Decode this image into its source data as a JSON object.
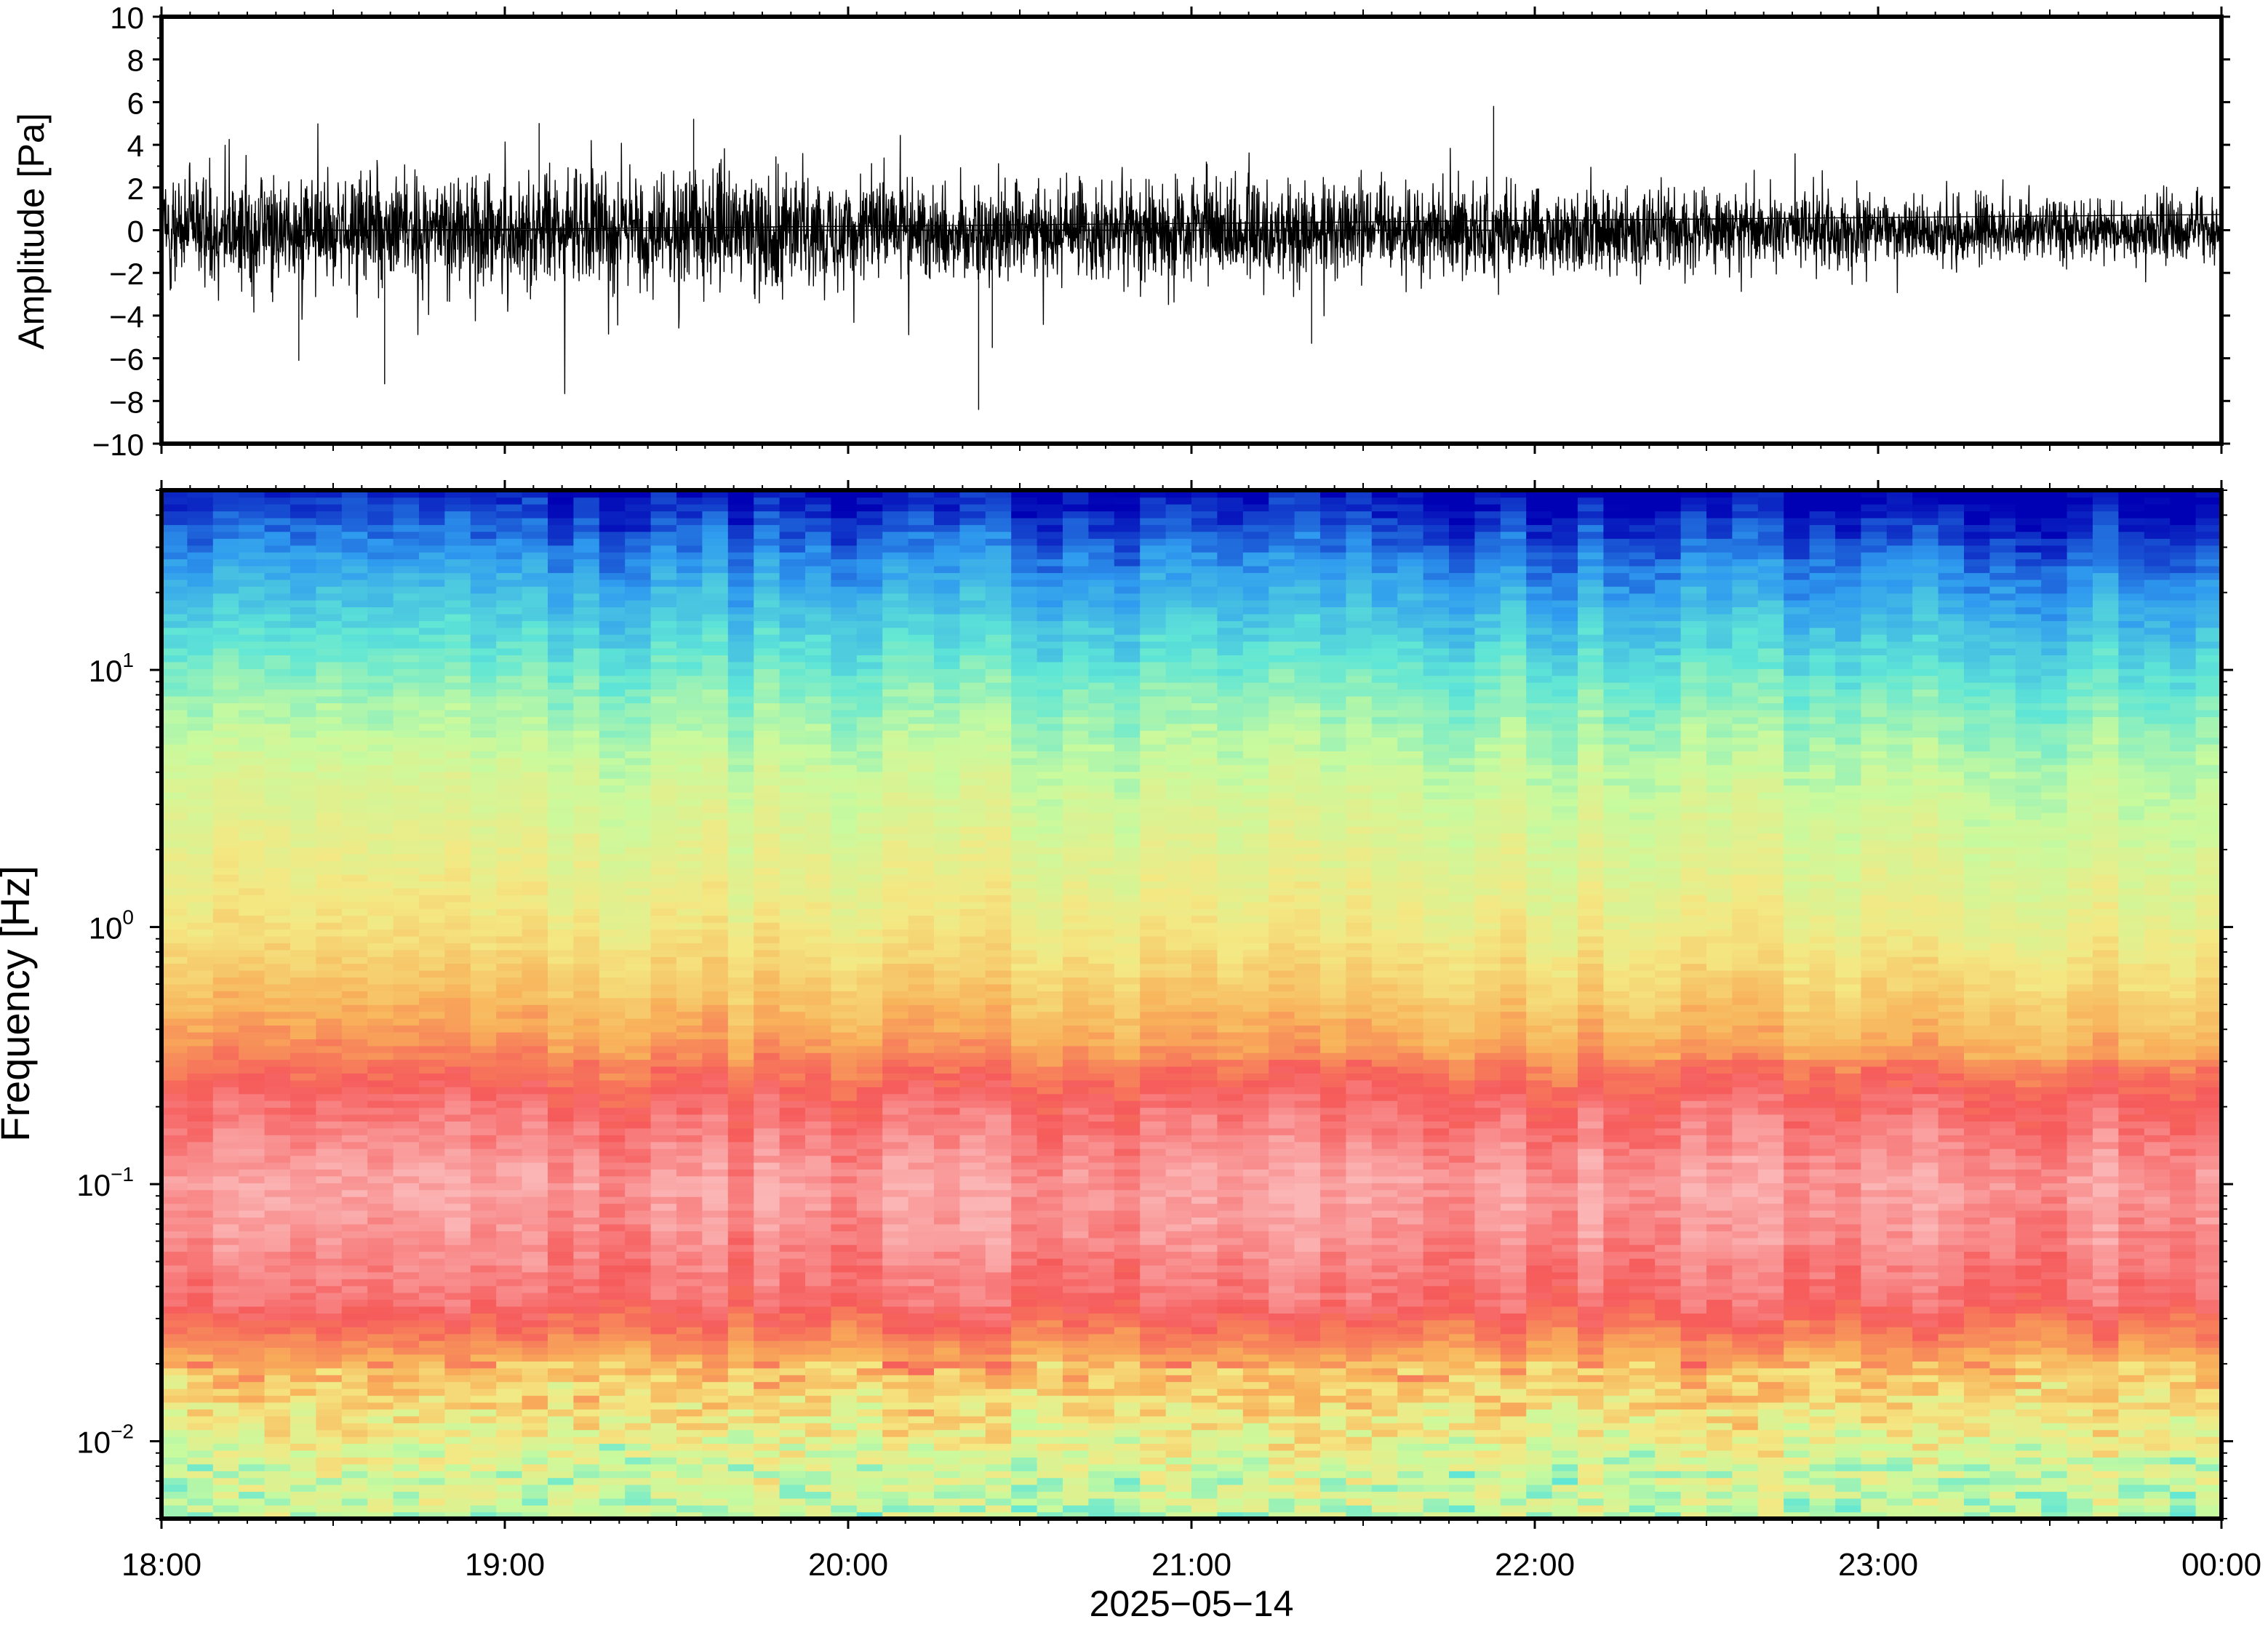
{
  "chart_data": [
    {
      "type": "line",
      "panel": "waveform",
      "ylabel": "Amplitude [Pa]",
      "ylim": [
        -10,
        10
      ],
      "yticks": [
        -10,
        -8,
        -6,
        -4,
        -2,
        0,
        2,
        4,
        6,
        8,
        10
      ],
      "ytick_labels": [
        "−10",
        "−8",
        "−6",
        "−4",
        "−2",
        "0",
        "2",
        "4",
        "6",
        "8",
        "10"
      ],
      "xlim_hours": [
        18,
        24
      ],
      "envelope_hours": [
        18.0,
        18.5,
        19.0,
        19.5,
        20.0,
        20.5,
        21.0,
        21.5,
        22.0,
        22.5,
        23.0,
        23.5,
        24.0
      ],
      "envelope_amplitude": [
        2.2,
        2.4,
        2.3,
        2.4,
        2.1,
        2.0,
        2.0,
        1.9,
        1.8,
        1.6,
        1.4,
        1.3,
        1.2
      ],
      "peaks": [
        {
          "hour": 18.65,
          "value": -7.2
        },
        {
          "hour": 19.55,
          "value": 5.2
        },
        {
          "hour": 20.38,
          "value": -8.4
        },
        {
          "hour": 20.42,
          "value": -5.5
        },
        {
          "hour": 21.88,
          "value": 5.8
        },
        {
          "hour": 21.35,
          "value": -5.3
        },
        {
          "hour": 18.4,
          "value": -6.1
        },
        {
          "hour": 19.1,
          "value": 5.0
        }
      ],
      "grid": false
    },
    {
      "type": "heatmap",
      "panel": "spectrogram",
      "ylabel": "Frequency [Hz]",
      "yscale": "log",
      "ylim": [
        0.005,
        50
      ],
      "yticks": [
        0.01,
        0.1,
        1,
        10
      ],
      "ytick_labels": [
        {
          "base": "10",
          "exp": "−2"
        },
        {
          "base": "10",
          "exp": "−1"
        },
        {
          "base": "10",
          "exp": "0"
        },
        {
          "base": "10",
          "exp": "1"
        }
      ],
      "colormap": [
        "#0000b4",
        "#2f9bef",
        "#5fe6d6",
        "#c8fa9e",
        "#f4e883",
        "#f8b25a",
        "#f65b5b",
        "#fbb5b5"
      ],
      "profile_freq_hz": [
        0.005,
        0.008,
        0.012,
        0.018,
        0.025,
        0.035,
        0.06,
        0.1,
        0.2,
        0.35,
        0.6,
        1,
        2,
        4,
        8,
        15,
        25,
        50
      ],
      "profile_level": [
        0.42,
        0.46,
        0.56,
        0.66,
        0.78,
        0.88,
        0.93,
        0.96,
        0.88,
        0.76,
        0.66,
        0.58,
        0.52,
        0.46,
        0.36,
        0.25,
        0.16,
        0.02
      ],
      "xlim_hours": [
        18,
        24
      ],
      "grid": false
    }
  ],
  "x_axis": {
    "tick_labels": [
      "18:00",
      "19:00",
      "20:00",
      "21:00",
      "22:00",
      "23:00",
      "00:00"
    ],
    "xlabel": "2025−05−14"
  },
  "colors": {
    "waveform": "#000000",
    "frame": "#000000",
    "background": "#ffffff"
  }
}
